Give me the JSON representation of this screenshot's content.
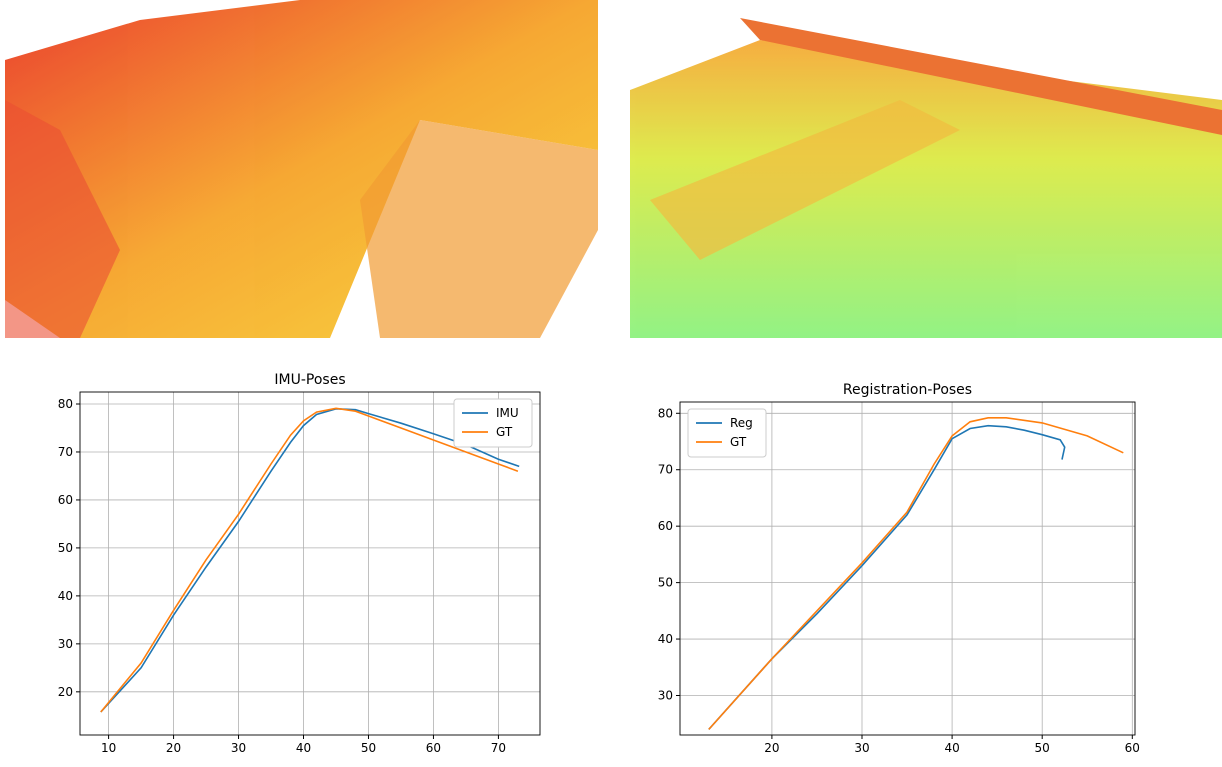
{
  "chart_data": [
    {
      "type": "line",
      "title": "IMU-Poses",
      "grid": true,
      "legend": "upper right",
      "xlim": [
        5.6,
        76.4
      ],
      "ylim": [
        11,
        82.5
      ],
      "xticks": [
        10,
        20,
        30,
        40,
        50,
        60,
        70
      ],
      "yticks": [
        20,
        30,
        40,
        50,
        60,
        70,
        80
      ],
      "series": [
        {
          "name": "IMU",
          "color": "#1f77b4",
          "x": [
            8.8,
            15,
            20,
            25,
            30,
            35,
            38,
            40,
            42,
            45,
            48,
            50,
            55,
            60,
            65,
            70,
            73.2
          ],
          "values": [
            15.8,
            25,
            36,
            46,
            55.5,
            66,
            72,
            75.5,
            77.8,
            79,
            78.8,
            78,
            76,
            73.8,
            71.5,
            68.5,
            67
          ]
        },
        {
          "name": "GT",
          "color": "#ff7f0e",
          "x": [
            8.8,
            15,
            20,
            25,
            30,
            35,
            38,
            40,
            42,
            45,
            48,
            50,
            55,
            60,
            65,
            70,
            73
          ],
          "values": [
            15.8,
            26,
            37,
            47.5,
            57,
            67.5,
            73.5,
            76.5,
            78.3,
            79.1,
            78.5,
            77.5,
            75,
            72.5,
            70,
            67.5,
            66
          ]
        }
      ]
    },
    {
      "type": "line",
      "title": "Registration-Poses",
      "grid": true,
      "legend": "upper left",
      "xlim": [
        9.8,
        60.3
      ],
      "ylim": [
        23,
        82
      ],
      "xticks": [
        20,
        30,
        40,
        50,
        60
      ],
      "yticks": [
        30,
        40,
        50,
        60,
        70,
        80
      ],
      "series": [
        {
          "name": "Reg",
          "color": "#1f77b4",
          "x": [
            13,
            20,
            25,
            30,
            35,
            38,
            40,
            42,
            44,
            46,
            48,
            50,
            52,
            52.5,
            52.2
          ],
          "values": [
            24,
            36.5,
            44.5,
            53,
            62,
            70,
            75.5,
            77.3,
            77.8,
            77.6,
            77,
            76.2,
            75.3,
            74,
            71.8
          ]
        },
        {
          "name": "GT",
          "color": "#ff7f0e",
          "x": [
            13,
            20,
            25,
            30,
            35,
            38,
            40,
            42,
            44,
            46,
            50,
            55,
            59
          ],
          "values": [
            24,
            36.5,
            45,
            53.5,
            62.5,
            71,
            76,
            78.5,
            79.2,
            79.2,
            78.3,
            76,
            73
          ]
        }
      ]
    }
  ]
}
